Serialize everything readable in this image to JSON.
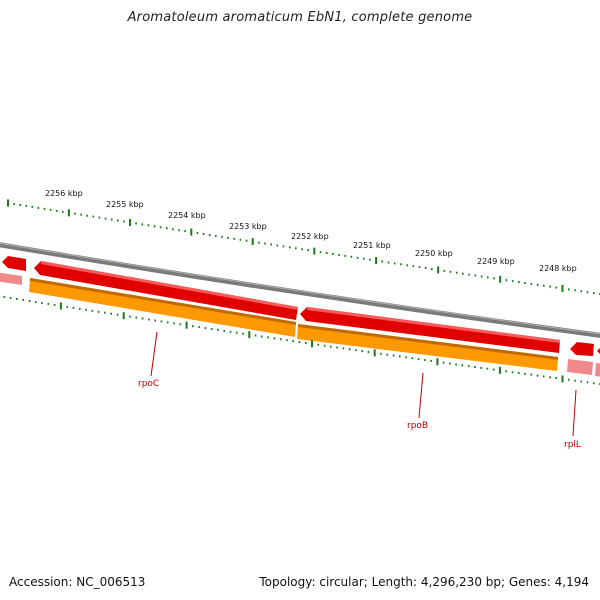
{
  "title": "Aromatoleum aromaticum EbN1, complete genome",
  "footer": {
    "accession": "Accession: NC_006513",
    "genome_info": "Topology: circular; Length: 4,296,230 bp; Genes: 4,194"
  },
  "scale_labels": [
    "2256 kbp",
    "2255 kbp",
    "2254 kbp",
    "2253 kbp",
    "2252 kbp",
    "2251 kbp",
    "2250 kbp",
    "2249 kbp",
    "2248 kbp"
  ],
  "genes": [
    {
      "name": "rpoC"
    },
    {
      "name": "rpoB"
    },
    {
      "name": "rplL"
    }
  ],
  "colors": {
    "backbone": "#8a8a8a",
    "gene_forward": "#e00000",
    "gene_light": "#f08a8a",
    "cds": "#ff9900",
    "ticks": "#1a7a1a",
    "label": "#c00000"
  }
}
